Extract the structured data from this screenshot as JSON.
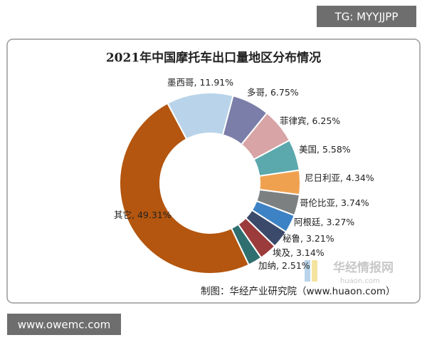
{
  "chart_data": {
    "type": "donut",
    "title": "2021年中国摩托车出口量地区分布情况",
    "categories": [
      "墨西哥",
      "多哥",
      "菲律宾",
      "美国",
      "尼日利亚",
      "哥伦比亚",
      "阿根廷",
      "秘鲁",
      "埃及",
      "加纳",
      "其它"
    ],
    "values": [
      11.91,
      6.75,
      6.25,
      5.58,
      4.34,
      3.74,
      3.27,
      3.21,
      3.14,
      2.51,
      49.31
    ],
    "value_labels": [
      "11.91%",
      "6.75%",
      "6.25%",
      "5.58%",
      "4.34%",
      "3.74%",
      "3.27%",
      "3.21%",
      "3.14%",
      "2.51%",
      "49.31%"
    ],
    "label_separator": ", ",
    "colors": [
      "#b9d4ea",
      "#7a7ea8",
      "#d8a4a6",
      "#5ba8ad",
      "#f0a14f",
      "#7c8080",
      "#3d82c4",
      "#3b4a6b",
      "#9b3b3b",
      "#2f6f70",
      "#b4560f"
    ],
    "source": "制图：华经产业研究院（www.huaon.com）"
  },
  "watermark": {
    "brand": "华经情报网",
    "domain": "huaon.com"
  },
  "badge": "TG: MYYJJPP",
  "footer": "www.owemc.com"
}
